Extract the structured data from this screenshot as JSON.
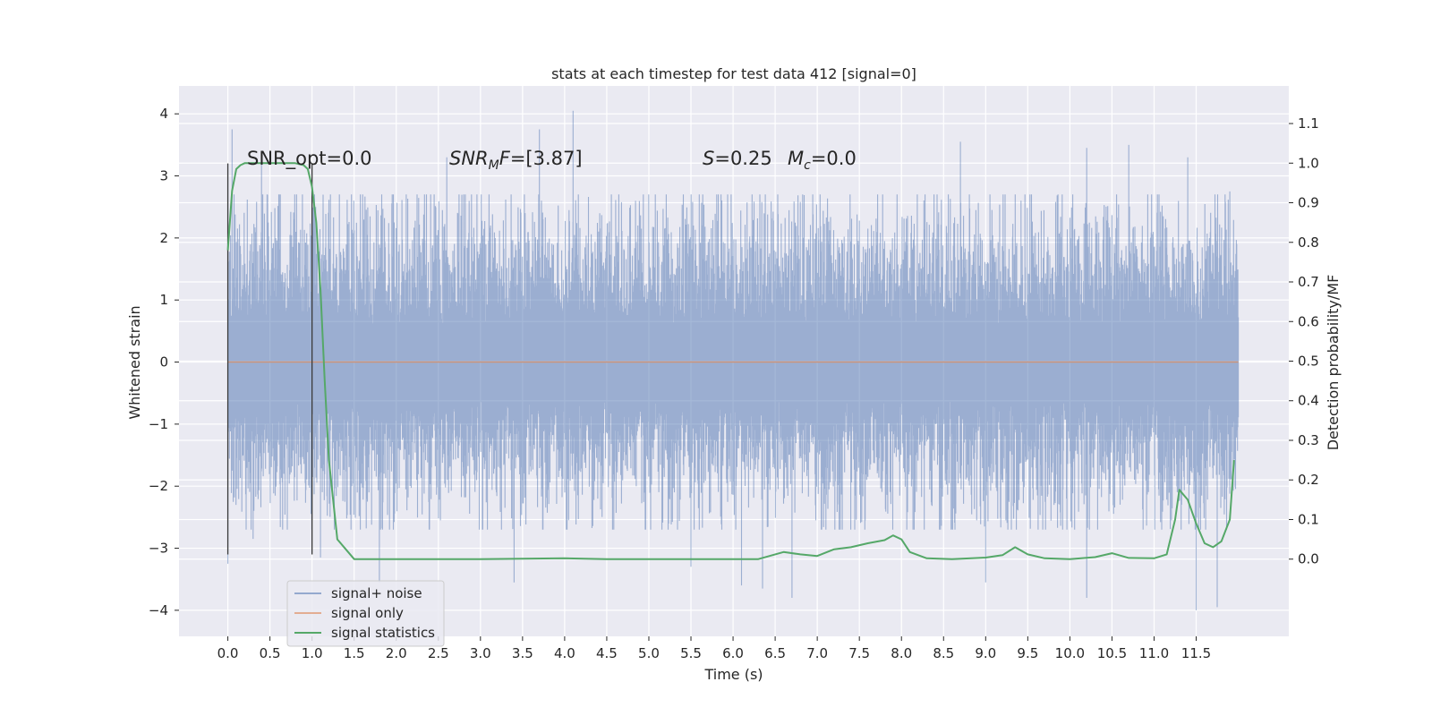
{
  "chart_data": {
    "type": "line",
    "title": "stats at each timestep for test data 412 [signal=0]",
    "xlabel": "Time (s)",
    "ylabel": "Whitened strain",
    "y2label": "Detection probability/MF",
    "xlim": [
      -0.58,
      12.6
    ],
    "ylim": [
      -4.42,
      4.45
    ],
    "y2lim": [
      -0.195,
      1.195
    ],
    "x_ticks": [
      0.0,
      0.5,
      1.0,
      1.5,
      2.0,
      2.5,
      3.0,
      3.5,
      4.0,
      4.5,
      5.0,
      5.5,
      6.0,
      6.5,
      7.0,
      7.5,
      8.0,
      8.5,
      9.0,
      9.5,
      10.0,
      10.5,
      11.0,
      11.5
    ],
    "x_tick_labels": [
      "0.0",
      "0.5",
      "1.0",
      "1.5",
      "2.0",
      "2.5",
      "3.0",
      "3.5",
      "4.0",
      "4.5",
      "5.0",
      "5.5",
      "6.0",
      "6.5",
      "7.0",
      "7.5",
      "8.0",
      "8.5",
      "9.0",
      "9.5",
      "10.0",
      "10.5",
      "11.0",
      "11.5"
    ],
    "y_ticks": [
      -4,
      -3,
      -2,
      -1,
      0,
      1,
      2,
      3,
      4
    ],
    "y_tick_labels": [
      "−4",
      "−3",
      "−2",
      "−1",
      "0",
      "1",
      "2",
      "3",
      "4"
    ],
    "y2_ticks": [
      0.0,
      0.1,
      0.2,
      0.3,
      0.4,
      0.5,
      0.6,
      0.7,
      0.8,
      0.9,
      1.0,
      1.1
    ],
    "y2_tick_labels": [
      "0.0",
      "0.1",
      "0.2",
      "0.3",
      "0.4",
      "0.5",
      "0.6",
      "0.7",
      "0.8",
      "0.9",
      "1.0",
      "1.1"
    ],
    "grid": true,
    "legend_position": "lower-left",
    "annotations": {
      "snr_opt": "SNR_opt=0.0",
      "snr_mf_base": "SNR",
      "snr_mf_sub": "M",
      "snr_mf_rest": "F=[3.87]",
      "s_label": "S",
      "s_value": "=0.25",
      "mc_base": "M",
      "mc_sub": "c",
      "mc_value": "=0.0"
    },
    "window_markers_x": [
      0.0,
      1.0
    ],
    "series": [
      {
        "name": "signal+ noise",
        "color": "#4c72b0",
        "axis": "left",
        "x_range": [
          0.0,
          12.0
        ],
        "typical_amplitude": 1.0,
        "peak_upper": [
          [
            0.0,
            3.2
          ],
          [
            0.05,
            3.75
          ],
          [
            0.4,
            3.3
          ],
          [
            2.6,
            3.3
          ],
          [
            3.7,
            3.75
          ],
          [
            4.1,
            4.05
          ],
          [
            8.7,
            3.55
          ],
          [
            10.2,
            3.45
          ],
          [
            10.7,
            3.5
          ],
          [
            11.4,
            3.3
          ],
          [
            11.9,
            2.75
          ]
        ],
        "peak_lower": [
          [
            0.0,
            -3.25
          ],
          [
            0.3,
            -2.85
          ],
          [
            1.1,
            -3.15
          ],
          [
            1.8,
            -3.55
          ],
          [
            3.4,
            -3.55
          ],
          [
            5.5,
            -3.3
          ],
          [
            6.1,
            -3.6
          ],
          [
            6.35,
            -3.65
          ],
          [
            6.7,
            -3.8
          ],
          [
            9.0,
            -3.55
          ],
          [
            10.2,
            -3.8
          ],
          [
            11.5,
            -4.0
          ],
          [
            11.75,
            -3.95
          ]
        ]
      },
      {
        "name": "signal only",
        "color": "#dd8452",
        "axis": "left",
        "x": [
          0.0,
          12.0
        ],
        "y": [
          0.0,
          0.0
        ]
      },
      {
        "name": "signal statistics",
        "color": "#55a868",
        "axis": "right",
        "x": [
          0.0,
          0.05,
          0.1,
          0.15,
          0.2,
          0.3,
          0.5,
          0.7,
          0.8,
          0.9,
          0.95,
          1.0,
          1.05,
          1.1,
          1.15,
          1.2,
          1.3,
          1.5,
          2.0,
          3.0,
          4.0,
          4.5,
          5.0,
          6.0,
          6.3,
          6.5,
          6.6,
          6.8,
          7.0,
          7.2,
          7.4,
          7.6,
          7.8,
          7.9,
          8.0,
          8.1,
          8.3,
          8.6,
          9.0,
          9.2,
          9.35,
          9.5,
          9.7,
          10.0,
          10.3,
          10.5,
          10.7,
          11.0,
          11.15,
          11.25,
          11.3,
          11.4,
          11.5,
          11.6,
          11.7,
          11.8,
          11.9,
          11.95
        ],
        "y": [
          0.78,
          0.93,
          0.985,
          0.995,
          1.0,
          1.0,
          1.0,
          1.0,
          1.0,
          0.995,
          0.985,
          0.94,
          0.85,
          0.68,
          0.45,
          0.25,
          0.05,
          0.0,
          0.0,
          0.0,
          0.002,
          0.0,
          0.0,
          0.0,
          0.0,
          0.012,
          0.018,
          0.012,
          0.008,
          0.025,
          0.03,
          0.04,
          0.048,
          0.06,
          0.05,
          0.018,
          0.002,
          0.0,
          0.004,
          0.01,
          0.03,
          0.012,
          0.002,
          0.0,
          0.005,
          0.015,
          0.003,
          0.002,
          0.012,
          0.1,
          0.175,
          0.15,
          0.09,
          0.04,
          0.03,
          0.045,
          0.1,
          0.25
        ]
      }
    ]
  }
}
